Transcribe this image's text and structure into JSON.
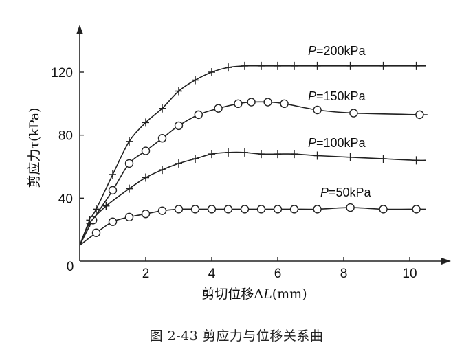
{
  "caption": "图 2-43    剪应力与位移关系曲",
  "chart_data": {
    "type": "line",
    "xlabel": "剪切位移ΔL(mm)",
    "xlabel_parts": {
      "prefix": "剪切位移Δ",
      "var": "L",
      "suffix": "(mm)"
    },
    "ylabel": "剪应力τ(kPa)",
    "xlim": [
      0,
      11.5
    ],
    "ylim": [
      0,
      145
    ],
    "xticks": [
      0,
      2,
      4,
      6,
      8,
      10
    ],
    "yticks": [
      40,
      80,
      120
    ],
    "origin_label": "0",
    "series": [
      {
        "name": "P=200kPa",
        "name_parts": {
          "var": "P",
          "text": "=200kPa"
        },
        "marker": "cross",
        "x": [
          0.3,
          0.5,
          1.0,
          1.5,
          2.0,
          2.5,
          3.0,
          3.5,
          4.0,
          4.5,
          5.0,
          5.5,
          6.0,
          6.5,
          7.2,
          8.2,
          9.2,
          10.2
        ],
        "y": [
          26,
          33,
          55,
          76,
          88,
          97,
          108,
          115,
          120,
          123,
          124,
          124,
          124,
          124,
          124,
          124,
          124,
          124
        ]
      },
      {
        "name": "P=150kPa",
        "name_parts": {
          "var": "P",
          "text": "=150kPa"
        },
        "marker": "circle",
        "x": [
          0.4,
          1.0,
          1.5,
          2.0,
          2.5,
          3.0,
          3.6,
          4.2,
          4.8,
          5.2,
          5.7,
          6.2,
          7.2,
          8.3,
          10.3
        ],
        "y": [
          26,
          45,
          62,
          70,
          78,
          86,
          93,
          97,
          100,
          101,
          101,
          100,
          96,
          94,
          93
        ]
      },
      {
        "name": "P=100kPa",
        "name_parts": {
          "var": "P",
          "text": "=100kPa"
        },
        "marker": "cross",
        "x": [
          0.3,
          0.8,
          1.5,
          2.0,
          2.5,
          3.0,
          3.5,
          4.0,
          4.5,
          5.0,
          5.5,
          6.0,
          6.5,
          7.2,
          8.2,
          9.2,
          10.2
        ],
        "y": [
          24,
          35,
          46,
          53,
          58,
          62,
          65,
          68,
          69,
          69,
          68,
          68,
          68,
          67,
          66,
          65,
          64
        ]
      },
      {
        "name": "P=50kPa",
        "name_parts": {
          "var": "P",
          "text": "=50kPa"
        },
        "marker": "circle",
        "x": [
          0.5,
          1.0,
          1.5,
          2.0,
          2.5,
          3.0,
          3.5,
          4.0,
          4.5,
          5.0,
          5.5,
          6.0,
          6.5,
          7.2,
          8.2,
          9.2,
          10.2
        ],
        "y": [
          18,
          25,
          28,
          30,
          32,
          33,
          33,
          33,
          33,
          33,
          33,
          33,
          33,
          33,
          34,
          33,
          33
        ]
      }
    ]
  }
}
